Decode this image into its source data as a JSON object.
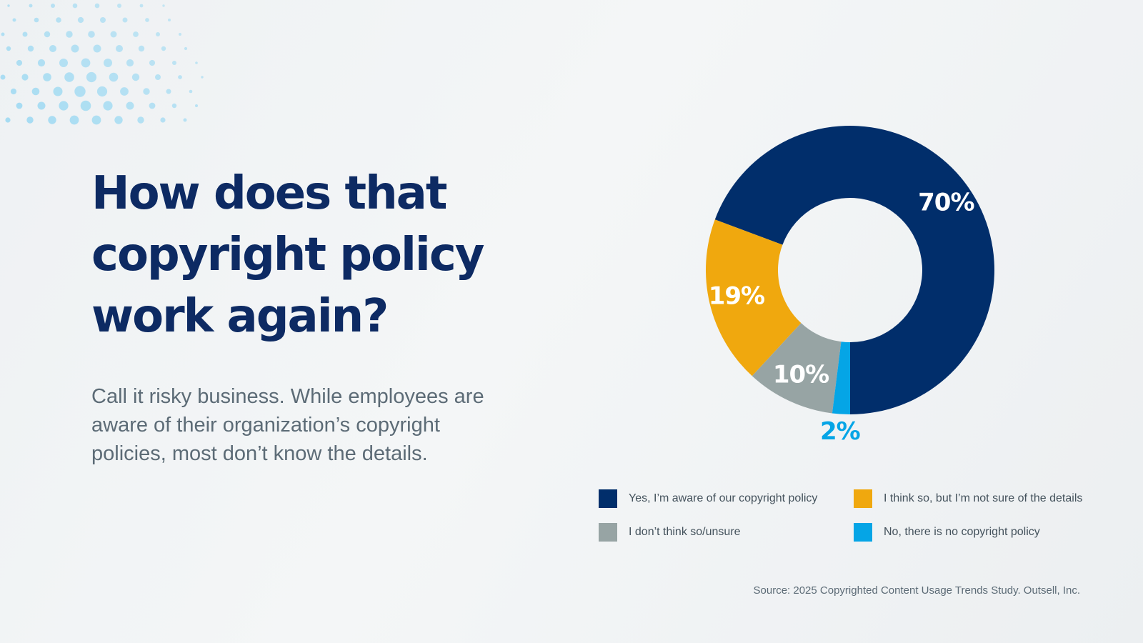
{
  "headline": "How does that copyright policy work again?",
  "subtext": "Call it risky business. While employees are aware of their organization’s copyright policies, most don’t know the details.",
  "source": "Source: 2025 Copyrighted Content Usage Trends Study. Outsell, Inc.",
  "colors": {
    "navy": "#012e6b",
    "gold": "#f0a80e",
    "gray": "#97a4a4",
    "cyan": "#05a5e6",
    "dots": "#7fd0f2"
  },
  "chart_data": {
    "type": "pie",
    "style": "donut",
    "title": "",
    "slices": [
      {
        "label": "Yes, I’m aware of our copyright policy",
        "value": 70,
        "display": "70%",
        "color": "#012e6b",
        "label_color": "#ffffff"
      },
      {
        "label": "I think so, but I’m not sure of the details",
        "value": 19,
        "display": "19%",
        "color": "#f0a80e",
        "label_color": "#ffffff"
      },
      {
        "label": "I don’t think so/unsure",
        "value": 10,
        "display": "10%",
        "color": "#97a4a4",
        "label_color": "#ffffff"
      },
      {
        "label": "No, there is no copyright policy",
        "value": 2,
        "display": "2%",
        "color": "#05a5e6",
        "label_color": "#05a5e6"
      }
    ],
    "legend": [
      "Yes, I’m aware of our copyright policy",
      "I think so, but I’m not sure of the details",
      "I don’t think so/unsure",
      "No, there is no copyright policy"
    ],
    "legend_position": "bottom"
  }
}
